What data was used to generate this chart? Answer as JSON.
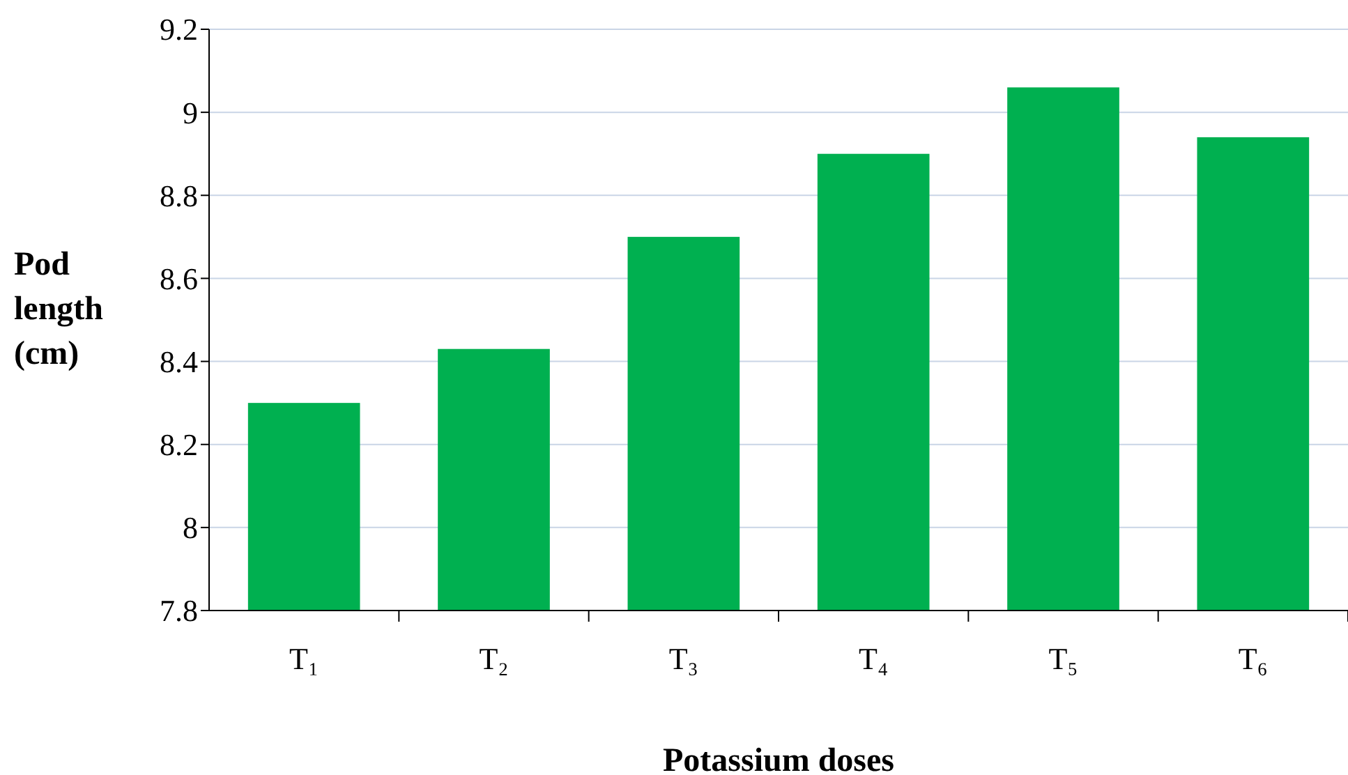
{
  "chart_data": {
    "type": "bar",
    "xlabel": "Potassium doses",
    "ylabel": "Pod length (cm)",
    "categories": [
      "T₁",
      "T₂",
      "T₃",
      "T₄",
      "T₅",
      "T₆"
    ],
    "values": [
      8.3,
      8.43,
      8.7,
      8.9,
      9.06,
      8.94
    ],
    "color": "#00b050",
    "ylim": [
      7.8,
      9.2
    ],
    "yticks": [
      7.8,
      8,
      8.2,
      8.4,
      8.6,
      8.8,
      9,
      9.2
    ],
    "grid": "y"
  }
}
